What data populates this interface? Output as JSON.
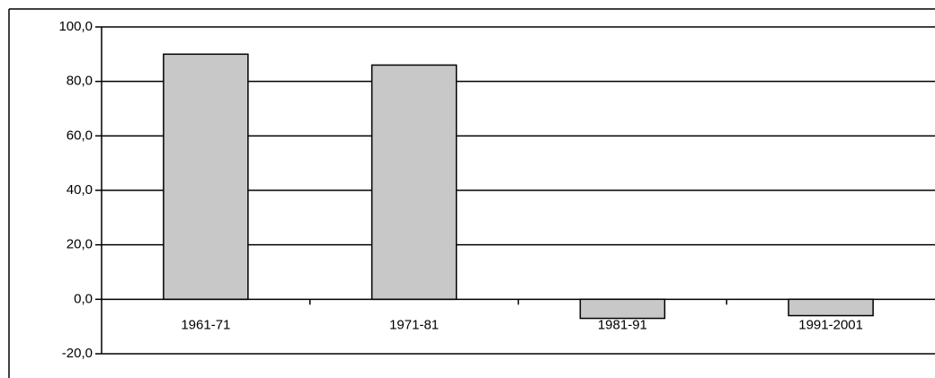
{
  "chart_data": {
    "type": "bar",
    "categories": [
      "1961-71",
      "1971-81",
      "1981-91",
      "1991-2001"
    ],
    "values": [
      90,
      86,
      -7,
      -6
    ],
    "color": "#c8c8c8",
    "ylim": [
      -20,
      100
    ],
    "yticks": [
      {
        "value": -20,
        "label": "-20,0"
      },
      {
        "value": 0,
        "label": "0,0"
      },
      {
        "value": 20,
        "label": "20,0"
      },
      {
        "value": 40,
        "label": "40,0"
      },
      {
        "value": 60,
        "label": "60,0"
      },
      {
        "value": 80,
        "label": "80,0"
      },
      {
        "value": 100,
        "label": "100,0"
      }
    ],
    "grid": true
  }
}
